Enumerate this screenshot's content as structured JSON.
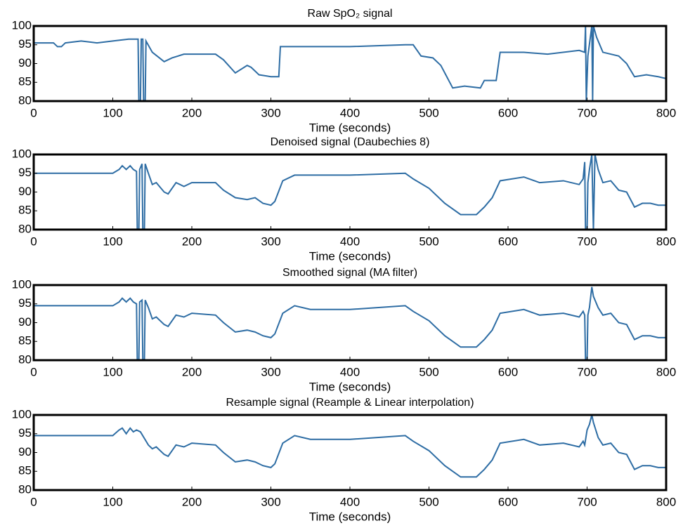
{
  "chart_data": [
    {
      "type": "line",
      "title": "Raw SpO₂ signal",
      "x_label": "Time (seconds)",
      "color": "#2e6da4",
      "x": [
        0,
        25,
        30,
        35,
        40,
        60,
        80,
        100,
        120,
        132,
        133,
        135,
        136,
        138,
        139,
        141,
        142,
        150,
        165,
        175,
        190,
        230,
        240,
        255,
        270,
        275,
        285,
        300,
        310,
        312,
        330,
        400,
        470,
        480,
        490,
        505,
        515,
        525,
        530,
        545,
        565,
        570,
        585,
        590,
        620,
        650,
        690,
        697,
        698,
        699,
        701,
        706,
        707,
        708,
        712,
        720,
        740,
        750,
        760,
        775,
        790,
        800
      ],
      "values": [
        95.5,
        95.5,
        94.5,
        94.5,
        95.5,
        96,
        95.5,
        96,
        96.5,
        96.5,
        80,
        80,
        96.5,
        96.5,
        80,
        80,
        96,
        93,
        90.5,
        91.5,
        92.5,
        92.5,
        91,
        87.5,
        89.5,
        89,
        87,
        86.5,
        86.5,
        94.5,
        94.5,
        94.5,
        95,
        95,
        92,
        91.5,
        89.5,
        85.5,
        83.5,
        84,
        83.5,
        85.5,
        85.5,
        93,
        93,
        92.5,
        93.5,
        93,
        100,
        80,
        92,
        100,
        80,
        100,
        97,
        93,
        92,
        90,
        86.5,
        87,
        86.5,
        86
      ],
      "xlim": [
        0,
        800
      ],
      "ylim": [
        80,
        100
      ],
      "xticks": [
        0,
        100,
        200,
        300,
        400,
        500,
        600,
        700,
        800
      ],
      "yticks": [
        80,
        85,
        90,
        95,
        100
      ]
    },
    {
      "type": "line",
      "title": "Denoised signal (Daubechies 8)",
      "x_label": "Time (seconds)",
      "color": "#2e6da4",
      "x": [
        0,
        50,
        100,
        108,
        112,
        117,
        122,
        126,
        130,
        131,
        133,
        134,
        137,
        138,
        140,
        141,
        145,
        150,
        155,
        165,
        170,
        180,
        190,
        200,
        230,
        240,
        255,
        270,
        280,
        290,
        300,
        305,
        315,
        330,
        350,
        400,
        470,
        480,
        500,
        520,
        540,
        560,
        570,
        580,
        590,
        620,
        640,
        670,
        690,
        695,
        697,
        698,
        700,
        701,
        703,
        706,
        708,
        710,
        714,
        720,
        730,
        740,
        750,
        760,
        770,
        780,
        790,
        800
      ],
      "values": [
        95,
        95,
        95,
        96,
        97,
        96,
        97,
        96,
        95.5,
        80,
        80,
        96,
        97.5,
        80,
        80,
        97.5,
        95,
        92,
        92.5,
        90,
        89.5,
        92.5,
        91.5,
        92.5,
        92.5,
        90.5,
        88.5,
        88,
        88.5,
        87,
        86.5,
        87.5,
        93,
        94.5,
        94.5,
        94.5,
        95,
        93.5,
        91,
        87,
        84,
        84,
        86,
        88.5,
        93,
        94,
        92.5,
        93,
        92,
        93.5,
        98,
        80,
        80,
        92.5,
        96,
        100,
        80,
        100,
        96,
        92.5,
        93,
        90.5,
        90,
        86,
        87,
        87,
        86.5,
        86.5
      ],
      "xlim": [
        0,
        800
      ],
      "ylim": [
        80,
        100
      ],
      "xticks": [
        0,
        100,
        200,
        300,
        400,
        500,
        600,
        700,
        800
      ],
      "yticks": [
        80,
        85,
        90,
        95,
        100
      ]
    },
    {
      "type": "line",
      "title": "Smoothed signal (MA filter)",
      "x_label": "Time (seconds)",
      "color": "#2e6da4",
      "x": [
        0,
        50,
        100,
        108,
        112,
        117,
        122,
        126,
        130,
        131,
        133,
        134,
        137,
        138,
        140,
        141,
        145,
        150,
        155,
        165,
        170,
        180,
        190,
        200,
        230,
        240,
        255,
        270,
        280,
        290,
        300,
        305,
        315,
        330,
        350,
        400,
        470,
        480,
        500,
        520,
        540,
        560,
        570,
        580,
        590,
        620,
        640,
        670,
        690,
        695,
        697,
        698,
        700,
        701,
        703,
        706,
        708,
        714,
        720,
        730,
        740,
        750,
        760,
        770,
        780,
        790,
        800
      ],
      "values": [
        94.5,
        94.5,
        94.5,
        95.5,
        96.5,
        95.5,
        96.5,
        95.5,
        95,
        80,
        80,
        95.5,
        96,
        80,
        80,
        96,
        94,
        91,
        91.5,
        89.5,
        89,
        92,
        91.5,
        92.5,
        92,
        90,
        87.5,
        88,
        87.5,
        86.5,
        86,
        87,
        92.5,
        94.5,
        93.5,
        93.5,
        94.5,
        93,
        90.5,
        86.5,
        83.5,
        83.5,
        85.5,
        88,
        92.5,
        93.5,
        92,
        92.5,
        91.5,
        93,
        92,
        80,
        80,
        92,
        94,
        99.5,
        97,
        94,
        92,
        92.5,
        90,
        89.5,
        85.5,
        86.5,
        86.5,
        86,
        86
      ],
      "xlim": [
        0,
        800
      ],
      "ylim": [
        80,
        100
      ],
      "xticks": [
        0,
        100,
        200,
        300,
        400,
        500,
        600,
        700,
        800
      ],
      "yticks": [
        80,
        85,
        90,
        95,
        100
      ]
    },
    {
      "type": "line",
      "title": "Resample signal (Reample & Linear interpolation)",
      "x_label": "Time (seconds)",
      "color": "#2e6da4",
      "x": [
        0,
        50,
        100,
        108,
        112,
        117,
        122,
        126,
        130,
        135,
        145,
        150,
        155,
        165,
        170,
        180,
        190,
        200,
        230,
        240,
        255,
        270,
        280,
        290,
        300,
        305,
        315,
        330,
        350,
        400,
        470,
        480,
        500,
        520,
        540,
        560,
        570,
        580,
        590,
        620,
        640,
        670,
        690,
        695,
        697,
        700,
        703,
        706,
        708,
        714,
        720,
        730,
        740,
        750,
        760,
        770,
        780,
        790,
        800
      ],
      "values": [
        94.5,
        94.5,
        94.5,
        96,
        96.5,
        95,
        96.5,
        95.5,
        96,
        95.5,
        92,
        91,
        91.5,
        89.5,
        89,
        92,
        91.5,
        92.5,
        92,
        90,
        87.5,
        88,
        87.5,
        86.5,
        86,
        87,
        92.5,
        94.5,
        93.5,
        93.5,
        94.5,
        93,
        90.5,
        86.5,
        83.5,
        83.5,
        85.5,
        88,
        92.5,
        93.5,
        92,
        92.5,
        91.5,
        93,
        92,
        96,
        97.5,
        100,
        98,
        94,
        92,
        92.5,
        90,
        89.5,
        85.5,
        86.5,
        86.5,
        86,
        86
      ],
      "xlim": [
        0,
        800
      ],
      "ylim": [
        80,
        100
      ],
      "xticks": [
        0,
        100,
        200,
        300,
        400,
        500,
        600,
        700,
        800
      ],
      "yticks": [
        80,
        85,
        90,
        95,
        100
      ]
    }
  ]
}
